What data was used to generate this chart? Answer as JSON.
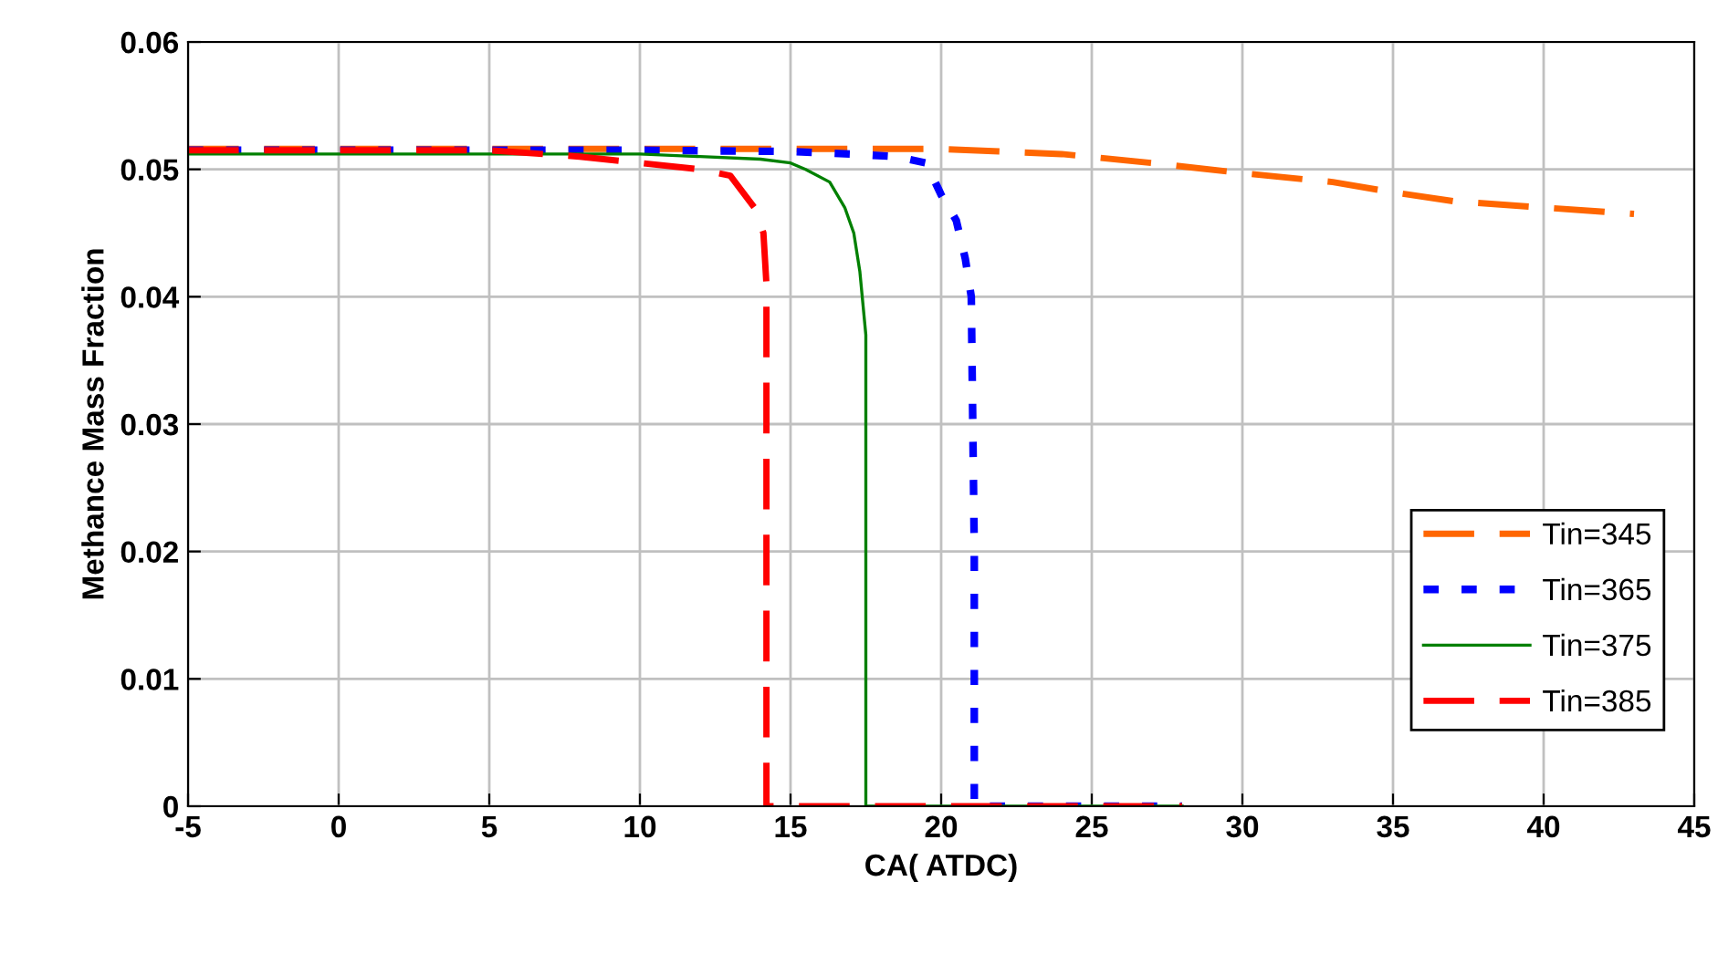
{
  "chart_data": {
    "type": "line",
    "xlabel": "CA( ATDC)",
    "ylabel": "Methance Mass Fraction",
    "xlim": [
      -5,
      45
    ],
    "xticks": [
      -5,
      0,
      5,
      10,
      15,
      20,
      25,
      30,
      35,
      40,
      45
    ],
    "ylim": [
      0,
      0.06
    ],
    "yticks": [
      {
        "value": 0,
        "label": "0"
      },
      {
        "value": 0.01,
        "label": "0.01"
      },
      {
        "value": 0.02,
        "label": "0.02"
      },
      {
        "value": 0.03,
        "label": "0.03"
      },
      {
        "value": 0.04,
        "label": "0.04"
      },
      {
        "value": 0.05,
        "label": "0.05"
      },
      {
        "value": 0.06,
        "label": "0.06"
      }
    ],
    "grid": true,
    "legend": "bottom right",
    "marker": "none",
    "series": [
      {
        "name": "Tin=345",
        "color": "#ff6600",
        "line_style": "dashed",
        "x": [
          -5,
          5,
          10,
          15,
          20,
          22,
          24,
          27,
          30,
          33,
          35,
          37,
          40,
          43
        ],
        "values": [
          0.0516,
          0.0516,
          0.0516,
          0.0516,
          0.0516,
          0.0514,
          0.0512,
          0.0505,
          0.0497,
          0.049,
          0.0482,
          0.0475,
          0.047,
          0.0465
        ]
      },
      {
        "name": "Tin=365",
        "color": "#0000ff",
        "line_style": "dotted",
        "x": [
          -5,
          5,
          10,
          15,
          17,
          18.5,
          19.5,
          20,
          20.5,
          20.8,
          21,
          21.1,
          21.1,
          28
        ],
        "values": [
          0.0515,
          0.0515,
          0.0515,
          0.0514,
          0.0512,
          0.051,
          0.0505,
          0.048,
          0.046,
          0.043,
          0.04,
          0.02,
          0,
          0
        ]
      },
      {
        "name": "Tin=375",
        "color": "#008000",
        "line_style": "solid",
        "x": [
          -5,
          10,
          12,
          14,
          15,
          15.5,
          16.3,
          16.8,
          17.1,
          17.3,
          17.5,
          17.5,
          28
        ],
        "values": [
          0.0512,
          0.0512,
          0.051,
          0.0508,
          0.0505,
          0.05,
          0.049,
          0.047,
          0.045,
          0.042,
          0.037,
          0,
          0
        ]
      },
      {
        "name": "Tin=385",
        "color": "#ff0000",
        "line_style": "dashed",
        "x": [
          -5,
          5,
          8,
          10,
          12,
          13,
          13.8,
          14.1,
          14.2,
          14.2,
          28
        ],
        "values": [
          0.0515,
          0.0515,
          0.051,
          0.0505,
          0.05,
          0.0495,
          0.047,
          0.045,
          0.041,
          0,
          0
        ]
      }
    ]
  }
}
